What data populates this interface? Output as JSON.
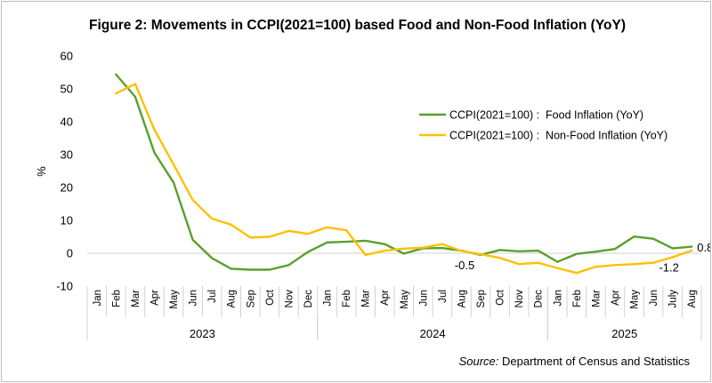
{
  "chart_data": {
    "type": "line",
    "title": "Figure 2: Movements in CCPI(2021=100) based Food and Non-Food Inflation (YoY)",
    "ylabel": "%",
    "ylim": [
      -10,
      60
    ],
    "yticks": [
      -10,
      0,
      10,
      20,
      30,
      40,
      50,
      60
    ],
    "grid": false,
    "legend": "right",
    "categories": [
      "Jan",
      "Feb",
      "Mar",
      "Apr",
      "May",
      "Jun",
      "Jul",
      "Aug",
      "Sep",
      "Oct",
      "Nov",
      "Dec",
      "Jan",
      "Feb",
      "Mar",
      "Apr",
      "May",
      "Jun",
      "Jul",
      "Aug",
      "Sep",
      "Oct",
      "Nov",
      "Dec",
      "Jan",
      "Feb",
      "Mar",
      "Apr",
      "May",
      "Jun",
      "July",
      "Aug"
    ],
    "year_groups": [
      {
        "label": "2023",
        "start": 0,
        "end": 11
      },
      {
        "label": "2024",
        "start": 12,
        "end": 23
      },
      {
        "label": "2025",
        "start": 24,
        "end": 31
      }
    ],
    "series": [
      {
        "name": "CCPI(2021=100) :  Food Inflation (YoY)",
        "color": "#5aa02c",
        "values": [
          null,
          54.4,
          47.6,
          30.6,
          21.5,
          4.1,
          -1.5,
          -4.7,
          -5.0,
          -5.0,
          -3.6,
          0.4,
          3.3,
          3.5,
          3.8,
          2.8,
          -0.1,
          1.5,
          1.6,
          0.8,
          -0.5,
          1.0,
          0.6,
          0.8,
          -2.6,
          -0.2,
          0.5,
          1.3,
          5.1,
          4.4,
          1.5,
          2.0
        ]
      },
      {
        "name": "CCPI(2021=100) :  Non-Food Inflation (YoY)",
        "color": "#ffc000",
        "values": [
          null,
          48.6,
          51.5,
          37.6,
          27.0,
          16.2,
          10.5,
          8.7,
          4.8,
          5.0,
          6.8,
          5.9,
          7.9,
          7.0,
          -0.5,
          0.8,
          1.4,
          1.7,
          2.8,
          0.7,
          -0.3,
          -1.4,
          -3.3,
          -2.9,
          -4.5,
          -6.0,
          -4.1,
          -3.6,
          -3.3,
          -2.9,
          -1.2,
          0.8
        ]
      }
    ],
    "annotations": [
      {
        "text": "-0.5",
        "series": 0,
        "index": 20,
        "pos": "below-left"
      },
      {
        "text": "-1.2",
        "series": 1,
        "index": 30,
        "pos": "below"
      },
      {
        "text": "0.8",
        "series": 1,
        "index": 31,
        "pos": "right"
      }
    ],
    "source_prefix": "Source:",
    "source_text": " Department of Census and Statistics"
  }
}
